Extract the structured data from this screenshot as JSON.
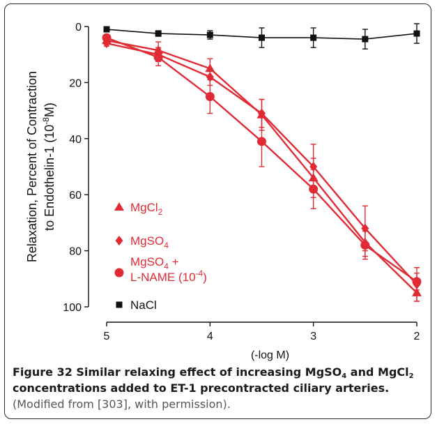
{
  "chart_data": {
    "type": "line",
    "ylabel_line1": "Relaxation, Percent of Contraction",
    "ylabel_line2_pre": "to Endothelin-1 (10",
    "ylabel_line2_sup": "-8",
    "ylabel_line2_post": "M)",
    "xlabel": "(-log M)",
    "x_ticks": [
      "5",
      "4",
      "3",
      "2"
    ],
    "y_ticks": [
      "0",
      "20",
      "40",
      "60",
      "80",
      "100"
    ],
    "xlim": [
      5,
      2
    ],
    "ylim": [
      0,
      100
    ],
    "y_inverted": true,
    "colors": {
      "red": "#e02b35",
      "black": "#111111"
    },
    "legend": [
      {
        "id": "mgcl2",
        "marker": "triangle",
        "color": "#e02b35",
        "text": "MgCl",
        "sub": "2"
      },
      {
        "id": "mgso4",
        "marker": "diamond",
        "color": "#e02b35",
        "text": "MgSO",
        "sub": "4"
      },
      {
        "id": "mgso4-lname",
        "marker": "circle",
        "color": "#e02b35",
        "text": "MgSO",
        "sub": "4",
        "tail": " +",
        "line2": "L-NAME (10",
        "line2_sup": "-4",
        "line2_tail": ")"
      },
      {
        "id": "nacl",
        "marker": "square",
        "color": "#111111",
        "text": "NaCl"
      }
    ],
    "series": [
      {
        "name": "NaCl",
        "marker": "square",
        "color": "#111111",
        "x": [
          5,
          4.5,
          4,
          3.5,
          3,
          2.5,
          2
        ],
        "y": [
          1,
          2.5,
          3,
          4,
          4,
          4.5,
          2.5
        ],
        "err": [
          0,
          1,
          1.5,
          3.5,
          3.5,
          3.5,
          3.5
        ]
      },
      {
        "name": "MgCl2",
        "marker": "triangle",
        "color": "#e02b35",
        "x": [
          5,
          4.5,
          4,
          3.5,
          3,
          2.5,
          2
        ],
        "y": [
          5,
          8.5,
          15,
          31.5,
          54,
          77,
          95
        ],
        "err": [
          1,
          3,
          3.5,
          5.5,
          7,
          5,
          3
        ]
      },
      {
        "name": "MgSO4",
        "marker": "diamond",
        "color": "#e02b35",
        "x": [
          5,
          4.5,
          4,
          3.5,
          3,
          2.5,
          2
        ],
        "y": [
          6,
          10,
          18,
          31,
          50,
          72,
          92
        ],
        "err": [
          1,
          2.5,
          3,
          5,
          8,
          8,
          6
        ]
      },
      {
        "name": "MgSO4 + L-NAME (10-4)",
        "marker": "circle",
        "color": "#e02b35",
        "x": [
          5,
          4.5,
          4,
          3.5,
          3,
          2.5,
          2
        ],
        "y": [
          4,
          11,
          25,
          41,
          58,
          78,
          91
        ],
        "err": [
          1,
          3,
          6,
          9,
          7,
          5,
          3
        ]
      }
    ]
  },
  "caption": {
    "bold_1": "Figure 32 Similar relaxing effect of increasing MgSO",
    "bold_sub_1": "4",
    "bold_2": " and MgCl",
    "bold_sub_2": "2",
    "bold_3": " concentrations added to ET-1 precontracted ciliary arteries.",
    "rest": " (Modified from [303], with permission)."
  }
}
